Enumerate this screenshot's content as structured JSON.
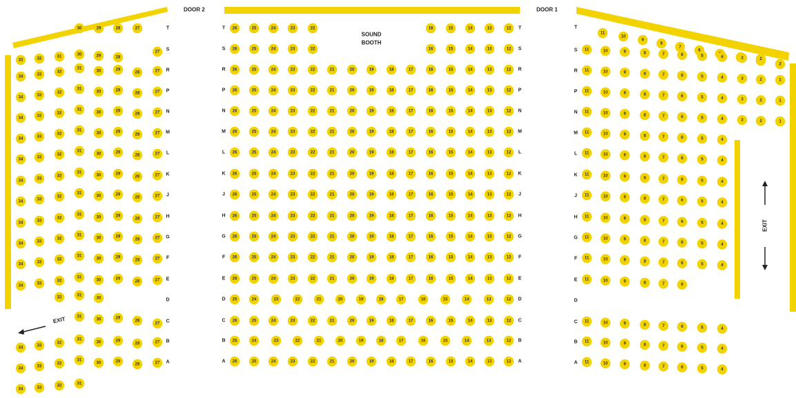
{
  "labels": {
    "door1": "DOOR 1",
    "door2": "DOOR 2",
    "sound_line1": "SOUND",
    "sound_line2": "BOOTH",
    "exit_left": "EXIT",
    "exit_right": "EXIT"
  },
  "colors": {
    "seat": "#f2d300",
    "wall": "#f2d300",
    "text": "#222222"
  },
  "icons": {
    "exit_left_arrow": "arrow-left-icon",
    "exit_right_up": "arrow-up-icon",
    "exit_right_down": "arrow-down-icon"
  },
  "center": {
    "rows": [
      {
        "row": "T",
        "seats": [
          "26",
          "25",
          "24",
          "23",
          "22",
          "16",
          "15",
          "14",
          "13",
          "12"
        ]
      },
      {
        "row": "S",
        "seats": [
          "26",
          "25",
          "24",
          "23",
          "22",
          "16",
          "15",
          "14",
          "13",
          "12"
        ]
      },
      {
        "row": "R",
        "seats": [
          "26",
          "25",
          "24",
          "23",
          "22",
          "21",
          "20",
          "19",
          "18",
          "17",
          "16",
          "15",
          "14",
          "13",
          "12"
        ]
      },
      {
        "row": "P",
        "seats": [
          "26",
          "25",
          "24",
          "23",
          "22",
          "21",
          "20",
          "19",
          "18",
          "17",
          "16",
          "15",
          "14",
          "13",
          "12"
        ]
      },
      {
        "row": "N",
        "seats": [
          "26",
          "25",
          "24",
          "23",
          "22",
          "21",
          "20",
          "19",
          "18",
          "17",
          "16",
          "15",
          "14",
          "13",
          "12"
        ]
      },
      {
        "row": "M",
        "seats": [
          "26",
          "25",
          "24",
          "23",
          "22",
          "21",
          "20",
          "19",
          "18",
          "17",
          "16",
          "15",
          "14",
          "13",
          "12"
        ]
      },
      {
        "row": "L",
        "seats": [
          "26",
          "25",
          "24",
          "23",
          "22",
          "21",
          "20",
          "19",
          "18",
          "17",
          "16",
          "15",
          "14",
          "13",
          "12"
        ]
      },
      {
        "row": "K",
        "seats": [
          "26",
          "25",
          "24",
          "23",
          "22",
          "21",
          "20",
          "19",
          "18",
          "17",
          "16",
          "15",
          "14",
          "13",
          "12"
        ]
      },
      {
        "row": "J",
        "seats": [
          "26",
          "25",
          "24",
          "23",
          "22",
          "21",
          "20",
          "19",
          "18",
          "17",
          "16",
          "15",
          "14",
          "13",
          "12"
        ]
      },
      {
        "row": "H",
        "seats": [
          "26",
          "25",
          "24",
          "23",
          "22",
          "21",
          "20",
          "19",
          "18",
          "17",
          "16",
          "15",
          "14",
          "13",
          "12"
        ]
      },
      {
        "row": "G",
        "seats": [
          "26",
          "25",
          "24",
          "23",
          "22",
          "21",
          "20",
          "19",
          "18",
          "17",
          "16",
          "15",
          "14",
          "13",
          "12"
        ]
      },
      {
        "row": "F",
        "seats": [
          "26",
          "25",
          "24",
          "23",
          "22",
          "21",
          "20",
          "19",
          "18",
          "17",
          "16",
          "15",
          "14",
          "13",
          "12"
        ]
      },
      {
        "row": "E",
        "seats": [
          "26",
          "25",
          "24",
          "23",
          "22",
          "21",
          "20",
          "19",
          "18",
          "17",
          "16",
          "15",
          "14",
          "13",
          "12"
        ]
      },
      {
        "row": "D",
        "seats": [
          "25",
          "24",
          "23",
          "22",
          "21",
          "20",
          "19",
          "18",
          "17",
          "16",
          "15",
          "14",
          "13",
          "12"
        ]
      },
      {
        "row": "C",
        "seats": [
          "26",
          "25",
          "24",
          "23",
          "22",
          "21",
          "20",
          "19",
          "18",
          "17",
          "16",
          "15",
          "14",
          "13",
          "12"
        ]
      },
      {
        "row": "B",
        "seats": [
          "25",
          "24",
          "23",
          "22",
          "21",
          "20",
          "19",
          "18",
          "17",
          "16",
          "15",
          "14",
          "13",
          "12"
        ]
      },
      {
        "row": "A",
        "seats": [
          "26",
          "25",
          "24",
          "23",
          "22",
          "21",
          "20",
          "19",
          "18",
          "17",
          "16",
          "15",
          "14",
          "13",
          "12"
        ]
      }
    ]
  },
  "left": {
    "rows": [
      {
        "row": "T",
        "seats": [
          "30",
          "29",
          "28",
          "27"
        ]
      },
      {
        "row": "S",
        "seats": [
          "33",
          "32",
          "31",
          "30",
          "29",
          "28",
          "27"
        ]
      },
      {
        "row": "R",
        "seats": [
          "34",
          "33",
          "32",
          "31",
          "30",
          "29",
          "28",
          "27"
        ]
      },
      {
        "row": "P",
        "seats": [
          "34",
          "33",
          "32",
          "31",
          "30",
          "29",
          "28",
          "27"
        ]
      },
      {
        "row": "N",
        "seats": [
          "34",
          "33",
          "32",
          "31",
          "30",
          "29",
          "28",
          "27"
        ]
      },
      {
        "row": "M",
        "seats": [
          "34",
          "33",
          "32",
          "31",
          "30",
          "29",
          "28",
          "27"
        ]
      },
      {
        "row": "L",
        "seats": [
          "34",
          "33",
          "32",
          "31",
          "30",
          "29",
          "28",
          "27"
        ]
      },
      {
        "row": "K",
        "seats": [
          "34",
          "33",
          "32",
          "31",
          "30",
          "29",
          "28",
          "27"
        ]
      },
      {
        "row": "J",
        "seats": [
          "34",
          "33",
          "32",
          "31",
          "30",
          "29",
          "28",
          "27"
        ]
      },
      {
        "row": "H",
        "seats": [
          "34",
          "33",
          "32",
          "31",
          "30",
          "29",
          "28",
          "27"
        ]
      },
      {
        "row": "G",
        "seats": [
          "34",
          "33",
          "32",
          "31",
          "30",
          "29",
          "28",
          "27"
        ]
      },
      {
        "row": "F",
        "seats": [
          "34",
          "33",
          "32",
          "31",
          "30",
          "29",
          "28",
          "27"
        ]
      },
      {
        "row": "E",
        "seats": [
          "34",
          "33",
          "32",
          "31",
          "30",
          "29",
          "28",
          "27"
        ]
      },
      {
        "row": "D",
        "seats": [
          "32",
          "31",
          "30"
        ]
      },
      {
        "row": "C",
        "seats": [
          "31",
          "30",
          "29",
          "28",
          "27"
        ]
      },
      {
        "row": "B",
        "seats": [
          "34",
          "33",
          "32",
          "31",
          "30",
          "29",
          "28",
          "27"
        ]
      },
      {
        "row": "A",
        "seats": [
          "34",
          "33",
          "32",
          "31",
          "30",
          "29",
          "28",
          "27"
        ]
      },
      {
        "row": "",
        "seats": [
          "34",
          "33",
          "32",
          "31"
        ]
      }
    ]
  },
  "right": {
    "rows": [
      {
        "row": "T",
        "seats": [
          "11",
          "10",
          "9",
          "8",
          "7",
          "6",
          "5",
          "4",
          "3",
          "2"
        ]
      },
      {
        "row": "S",
        "seats": [
          "11",
          "10",
          "9",
          "8",
          "7",
          "6",
          "5",
          "4",
          "3",
          "2"
        ]
      },
      {
        "row": "R",
        "seats": [
          "11",
          "10",
          "9",
          "8",
          "7",
          "6",
          "5",
          "4",
          "3",
          "2",
          "1"
        ]
      },
      {
        "row": "P",
        "seats": [
          "11",
          "10",
          "9",
          "8",
          "7",
          "6",
          "5",
          "4",
          "3",
          "2",
          "1"
        ]
      },
      {
        "row": "N",
        "seats": [
          "11",
          "10",
          "9",
          "8",
          "7",
          "6",
          "5",
          "4",
          "3",
          "2",
          "1"
        ]
      },
      {
        "row": "M",
        "seats": [
          "11",
          "10",
          "9",
          "8",
          "7",
          "6",
          "5",
          "4"
        ]
      },
      {
        "row": "L",
        "seats": [
          "11",
          "10",
          "9",
          "8",
          "7",
          "6",
          "5",
          "4"
        ]
      },
      {
        "row": "K",
        "seats": [
          "11",
          "10",
          "9",
          "8",
          "7",
          "6",
          "5",
          "4"
        ]
      },
      {
        "row": "J",
        "seats": [
          "11",
          "10",
          "9",
          "8",
          "7",
          "6",
          "5",
          "4"
        ]
      },
      {
        "row": "H",
        "seats": [
          "11",
          "10",
          "9",
          "8",
          "7",
          "6",
          "5",
          "4"
        ]
      },
      {
        "row": "G",
        "seats": [
          "11",
          "10",
          "9",
          "8",
          "7",
          "6",
          "5",
          "4"
        ]
      },
      {
        "row": "F",
        "seats": [
          "11",
          "10",
          "9",
          "8",
          "7",
          "6",
          "5",
          "4"
        ]
      },
      {
        "row": "E",
        "seats": [
          "11",
          "10",
          "9",
          "8",
          "7",
          "6"
        ]
      },
      {
        "row": "D",
        "seats": []
      },
      {
        "row": "C",
        "seats": [
          "11",
          "10",
          "9",
          "8",
          "7",
          "6",
          "5",
          "4"
        ]
      },
      {
        "row": "B",
        "seats": [
          "11",
          "10",
          "9",
          "8",
          "7",
          "6",
          "5",
          "4"
        ]
      },
      {
        "row": "A",
        "seats": [
          "11",
          "10",
          "9",
          "8",
          "7",
          "6",
          "5",
          "4"
        ]
      }
    ]
  }
}
